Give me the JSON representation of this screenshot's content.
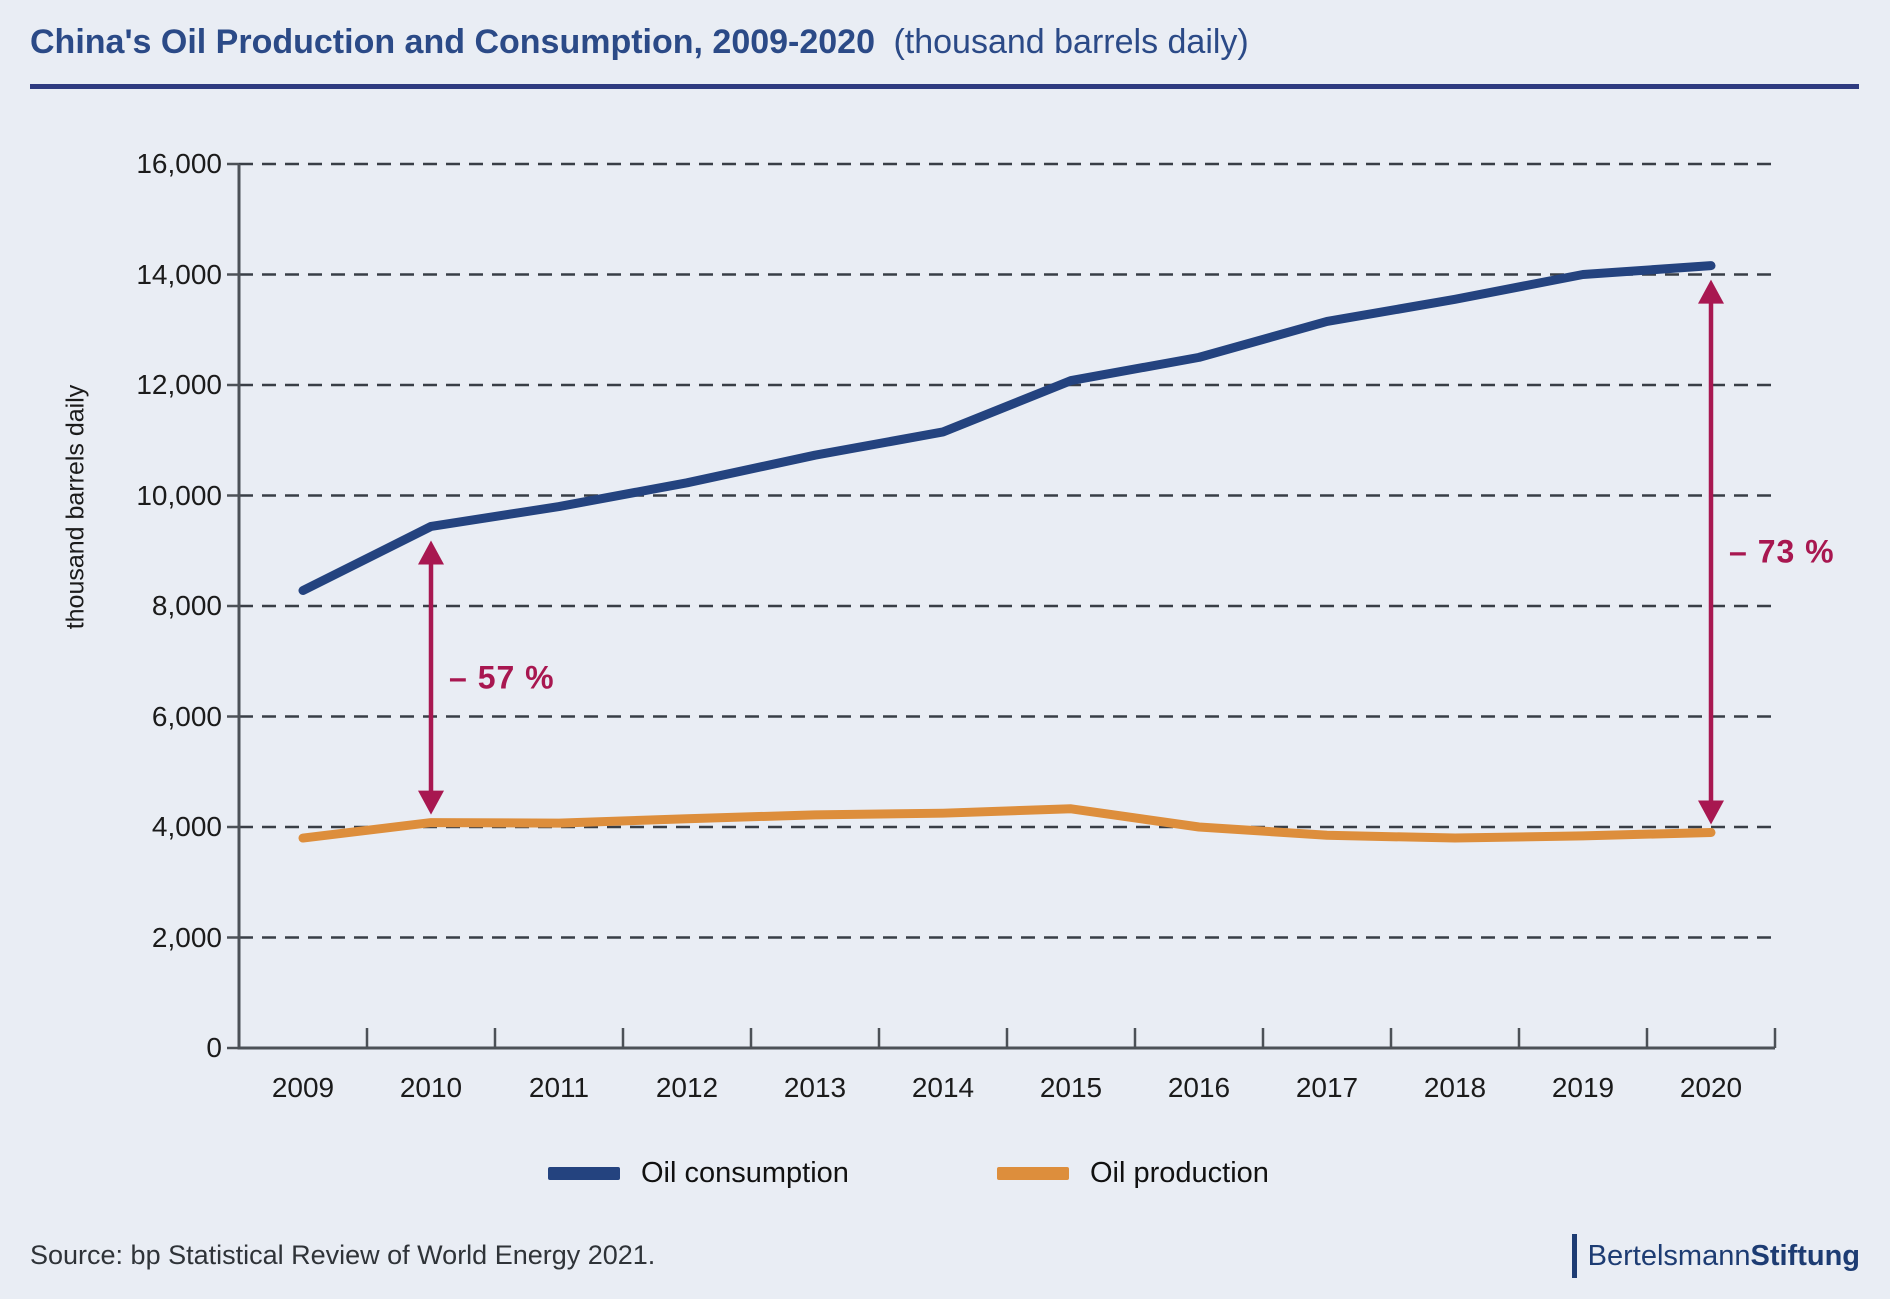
{
  "page": {
    "background": "#e9edf4"
  },
  "header": {
    "title": "China's Oil Production and Consumption, 2009-2020",
    "subtitle": "(thousand barrels daily)",
    "title_color": "#2b4a87",
    "rule_color": "#2e3b80"
  },
  "chart_data": {
    "type": "line",
    "title": "China's Oil Production and Consumption, 2009-2020 (thousand barrels daily)",
    "ylabel": "thousand barrels daily",
    "x": [
      2009,
      2010,
      2011,
      2012,
      2013,
      2014,
      2015,
      2016,
      2017,
      2018,
      2019,
      2020
    ],
    "series": [
      {
        "name": "Oil consumption",
        "color": "#24437f",
        "values": [
          8280,
          9440,
          9800,
          10230,
          10730,
          11150,
          12080,
          12500,
          13150,
          13550,
          14000,
          14160
        ]
      },
      {
        "name": "Oil production",
        "color": "#dd8e3c",
        "values": [
          3800,
          4080,
          4070,
          4150,
          4220,
          4250,
          4330,
          4000,
          3850,
          3800,
          3840,
          3900
        ]
      }
    ],
    "ylim": [
      0,
      16000
    ],
    "ytick_step": 2000,
    "ytick_labels": [
      "0",
      "2,000",
      "4,000",
      "6,000",
      "8,000",
      "10,000",
      "12,000",
      "14,000",
      "16,000"
    ],
    "grid": "horizontal-dashed",
    "legend_position": "bottom",
    "annotation_color": "#a81750",
    "annotations": [
      {
        "label": "– 57 %",
        "year": 2010
      },
      {
        "label": "– 73 %",
        "year": 2020
      }
    ]
  },
  "footer": {
    "source": "Source: bp Statistical Review of World Energy 2021.",
    "logo": {
      "regular": "Bertelsmann",
      "bold": "Stiftung",
      "color": "#1d3c73"
    }
  }
}
